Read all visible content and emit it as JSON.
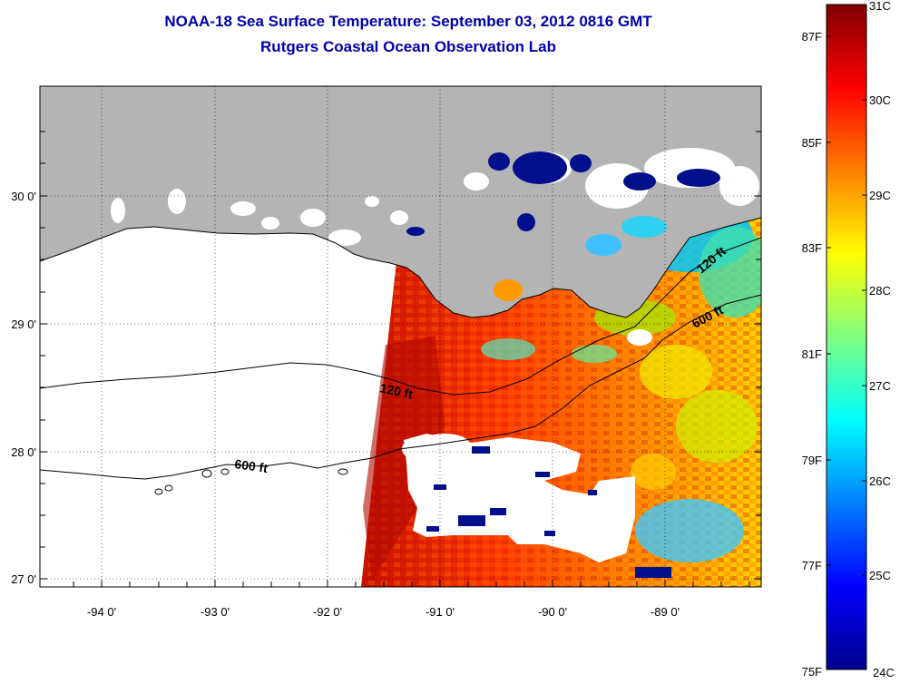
{
  "header": {
    "title_line1": "NOAA-18 Sea Surface Temperature:  September 03, 2012 0816 GMT",
    "title_line2": "Rutgers Coastal Ocean Observation Lab"
  },
  "map": {
    "latitude_labels": [
      "30 0'",
      "29 0'",
      "28 0'",
      "27 0'"
    ],
    "longitude_labels": [
      "-94 0'",
      "-93 0'",
      "-92 0'",
      "-91 0'",
      "-90 0'",
      "-89 0'"
    ],
    "contour_labels": [
      "120 ft",
      "120 ft",
      "600 ft",
      "600 ft"
    ],
    "colors": {
      "land": "#b4b4b4",
      "cloud": "#ffffff",
      "coast": "#000000"
    }
  },
  "colorbar": {
    "celsius_labels": [
      "31C",
      "30C",
      "29C",
      "28C",
      "27C",
      "26C",
      "25C",
      "24C"
    ],
    "fahrenheit_labels": [
      "87F",
      "85F",
      "83F",
      "81F",
      "79F",
      "77F",
      "75F"
    ],
    "range_c": [
      24,
      31
    ],
    "colormap": "jet"
  }
}
